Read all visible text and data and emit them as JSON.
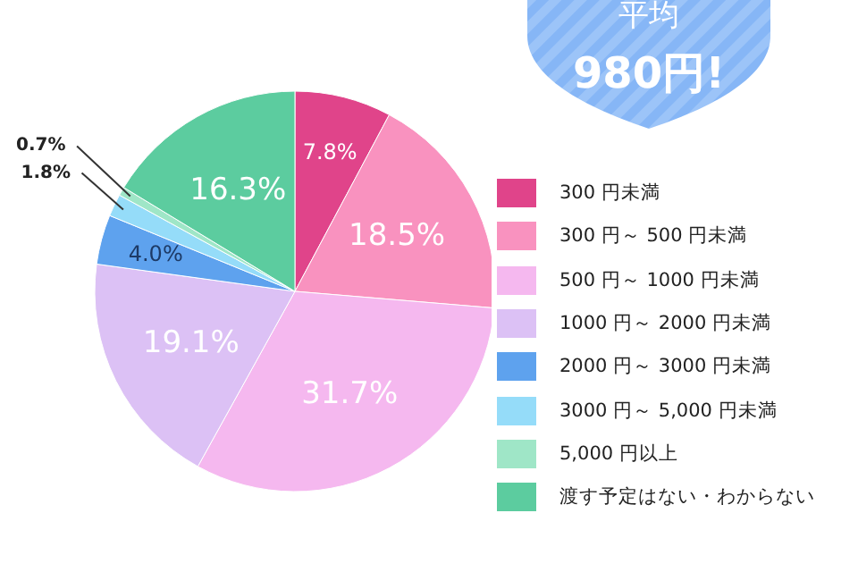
{
  "chart_data": {
    "type": "pie",
    "categories": [
      "300 円未満",
      "300 円～ 500 円未満",
      "500 円～ 1000 円未満",
      "1000 円～ 2000 円未満",
      "2000 円～ 3000 円未満",
      "3000 円～ 5,000 円未満",
      "5,000 円以上",
      "渡す予定はない・わからない"
    ],
    "values": [
      7.8,
      18.5,
      31.7,
      19.1,
      4.0,
      1.8,
      0.7,
      16.3
    ],
    "value_labels": [
      "7.8%",
      "18.5%",
      "31.7%",
      "19.1%",
      "4.0%",
      "1.8%",
      "0.7%",
      "16.3%"
    ],
    "colors": [
      "#e0448a",
      "#f992bf",
      "#f5b8ef",
      "#dcc1f5",
      "#5ea2ee",
      "#95dcf9",
      "#9fe6c7",
      "#5ccc9f"
    ],
    "legend": "right",
    "annotations": [
      "平均",
      "980円!"
    ]
  }
}
